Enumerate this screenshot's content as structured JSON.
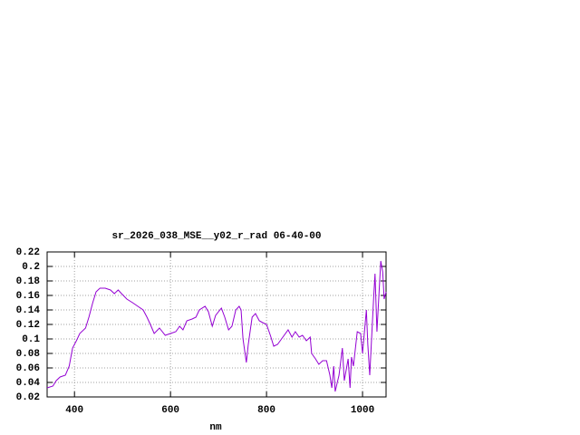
{
  "chart_data": {
    "type": "line",
    "title": "sr_2026_038_MSE__y02_r_rad 06-40-00",
    "x_label": "nm",
    "color": "#9400d3",
    "grid": true,
    "xlim": [
      343,
      1049
    ],
    "ylim": [
      0.02,
      0.22
    ],
    "xticks": [
      400,
      600,
      800,
      1000
    ],
    "yticks": [
      0.02,
      0.04,
      0.06,
      0.08,
      0.1,
      0.12,
      0.14,
      0.16,
      0.18,
      0.2,
      0.22
    ],
    "x": [
      343,
      355,
      362,
      370,
      381,
      389,
      396,
      404,
      411,
      423,
      430,
      438,
      445,
      453,
      464,
      475,
      483,
      491,
      498,
      509,
      521,
      532,
      543,
      551,
      558,
      566,
      577,
      589,
      600,
      611,
      619,
      626,
      634,
      645,
      653,
      660,
      672,
      679,
      687,
      694,
      706,
      713,
      721,
      728,
      736,
      743,
      747,
      751,
      758,
      762,
      770,
      777,
      785,
      792,
      800,
      808,
      815,
      823,
      834,
      845,
      853,
      860,
      868,
      875,
      883,
      891,
      894,
      902,
      909,
      917,
      925,
      932,
      936,
      940,
      943,
      951,
      958,
      962,
      970,
      974,
      977,
      981,
      989,
      996,
      1000,
      1008,
      1011,
      1015,
      1023,
      1026,
      1030,
      1038,
      1042,
      1045,
      1049
    ],
    "values": [
      0.0325,
      0.035,
      0.0425,
      0.0475,
      0.05,
      0.0625,
      0.0875,
      0.0975,
      0.1075,
      0.115,
      0.13,
      0.15,
      0.165,
      0.17,
      0.17,
      0.1675,
      0.1625,
      0.1675,
      0.1625,
      0.155,
      0.15,
      0.145,
      0.14,
      0.13,
      0.12,
      0.1075,
      0.115,
      0.105,
      0.1075,
      0.11,
      0.1175,
      0.1125,
      0.125,
      0.1275,
      0.13,
      0.14,
      0.145,
      0.1375,
      0.1175,
      0.1325,
      0.1425,
      0.13,
      0.1125,
      0.1175,
      0.14,
      0.145,
      0.14,
      0.1,
      0.0675,
      0.0925,
      0.13,
      0.135,
      0.125,
      0.1225,
      0.12,
      0.105,
      0.09,
      0.0925,
      0.1025,
      0.1125,
      0.1025,
      0.11,
      0.1025,
      0.105,
      0.0975,
      0.1025,
      0.08,
      0.0725,
      0.065,
      0.07,
      0.07,
      0.05,
      0.0325,
      0.0625,
      0.0275,
      0.05,
      0.0875,
      0.0425,
      0.0725,
      0.0325,
      0.075,
      0.0625,
      0.11,
      0.1075,
      0.08,
      0.14,
      0.0925,
      0.05,
      0.155,
      0.19,
      0.11,
      0.2075,
      0.1925,
      0.155,
      0.165
    ]
  }
}
